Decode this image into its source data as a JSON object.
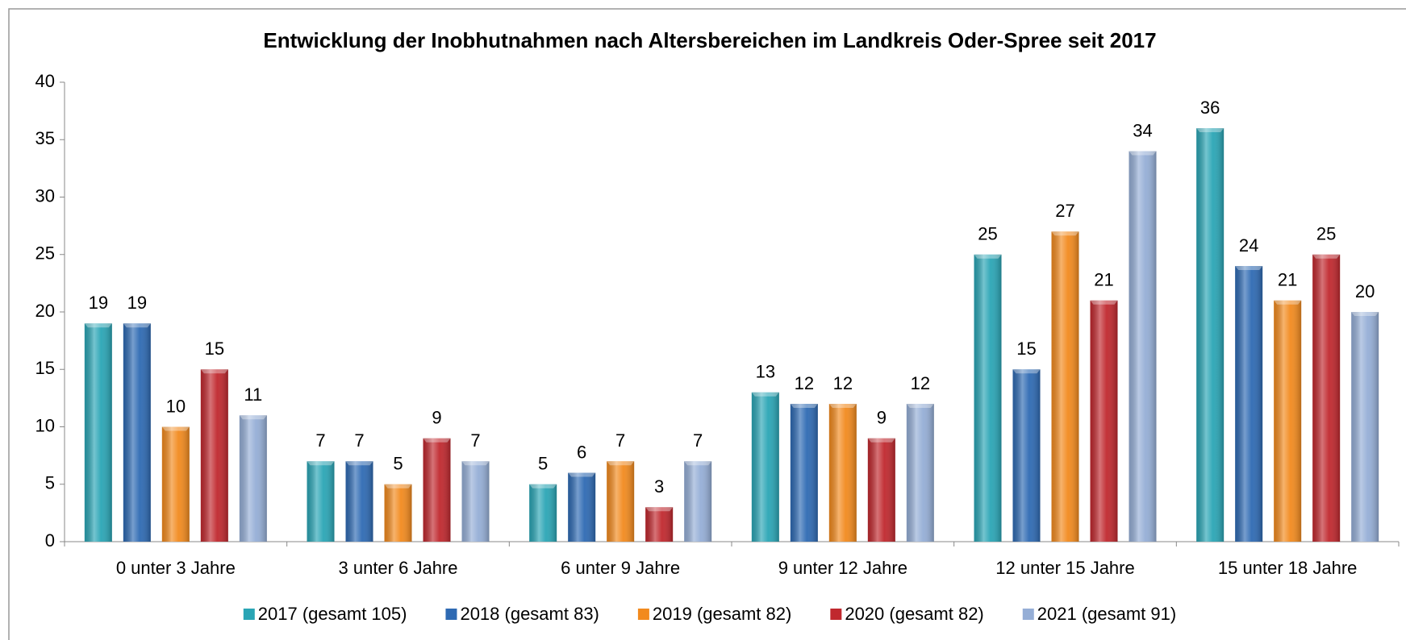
{
  "chart_data": {
    "type": "bar",
    "title": "Entwicklung der Inobhutnahmen nach Altersbereichen im Landkreis Oder-Spree seit 2017",
    "categories": [
      "0 unter 3 Jahre",
      "3 unter 6 Jahre",
      "6 unter 9 Jahre",
      "9 unter 12 Jahre",
      "12 unter 15 Jahre",
      "15 unter 18 Jahre"
    ],
    "series": [
      {
        "name": "2017 (gesamt 105)",
        "color": "#2aa5b5",
        "values": [
          19,
          7,
          5,
          13,
          25,
          36
        ]
      },
      {
        "name": "2018 (gesamt 83)",
        "color": "#2e6ab3",
        "values": [
          19,
          7,
          6,
          12,
          15,
          24
        ]
      },
      {
        "name": "2019 (gesamt 82)",
        "color": "#f28a1e",
        "values": [
          10,
          5,
          7,
          12,
          27,
          21
        ]
      },
      {
        "name": "2020 (gesamt 82)",
        "color": "#c0282e",
        "values": [
          15,
          9,
          3,
          9,
          21,
          25
        ]
      },
      {
        "name": "2021 (gesamt 91)",
        "color": "#95aed6",
        "values": [
          11,
          7,
          7,
          12,
          34,
          20
        ]
      }
    ],
    "ylim": [
      0,
      40
    ],
    "yticks": [
      0,
      5,
      10,
      15,
      20,
      25,
      30,
      35,
      40
    ],
    "legend": "bottom"
  }
}
